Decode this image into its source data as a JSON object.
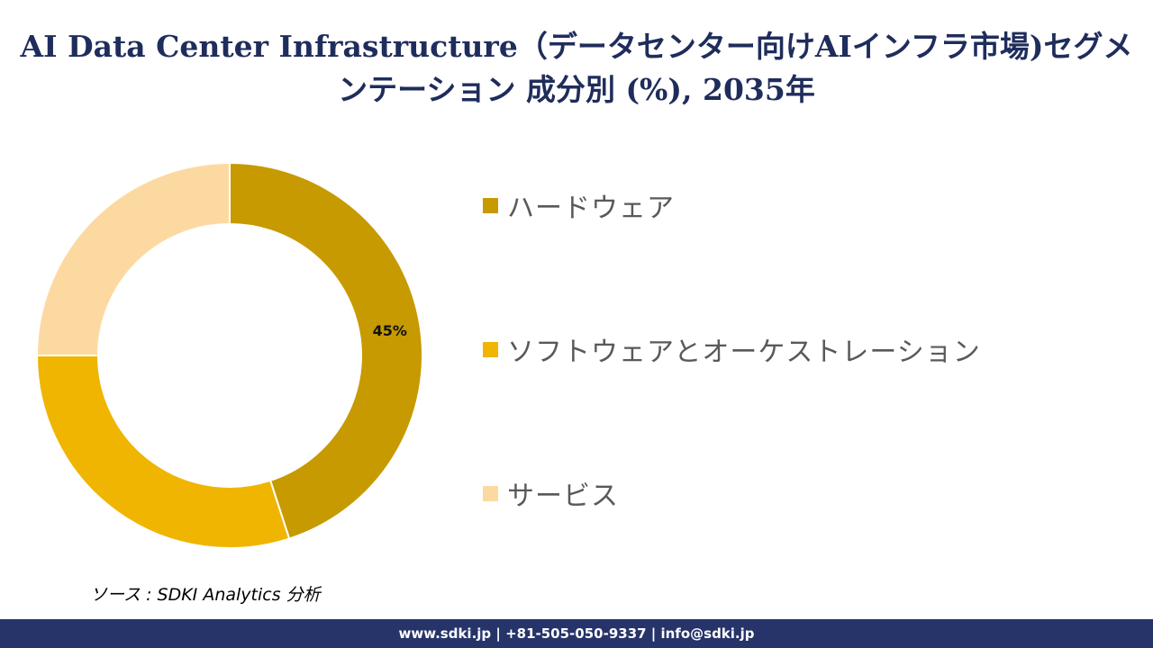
{
  "chart_data": {
    "type": "pie",
    "title": "AI Data Center Infrastructure（データセンター向けAIインフラ市場)セグメンテーション 成分別 (%), 2035年",
    "donut": true,
    "categories": [
      "ハードウェア",
      "ソフトウェアとオーケストレーション",
      "サービス"
    ],
    "values": [
      45,
      30,
      25
    ],
    "colors": [
      "#c69a00",
      "#efb500",
      "#fdd9a2"
    ],
    "data_labels": [
      "45%",
      "",
      ""
    ],
    "legend_position": "right"
  },
  "source_text": "ソース : SDKI Analytics 分析",
  "footer_text": "www.sdki.jp | +81-505-050-9337 | info@sdki.jp"
}
